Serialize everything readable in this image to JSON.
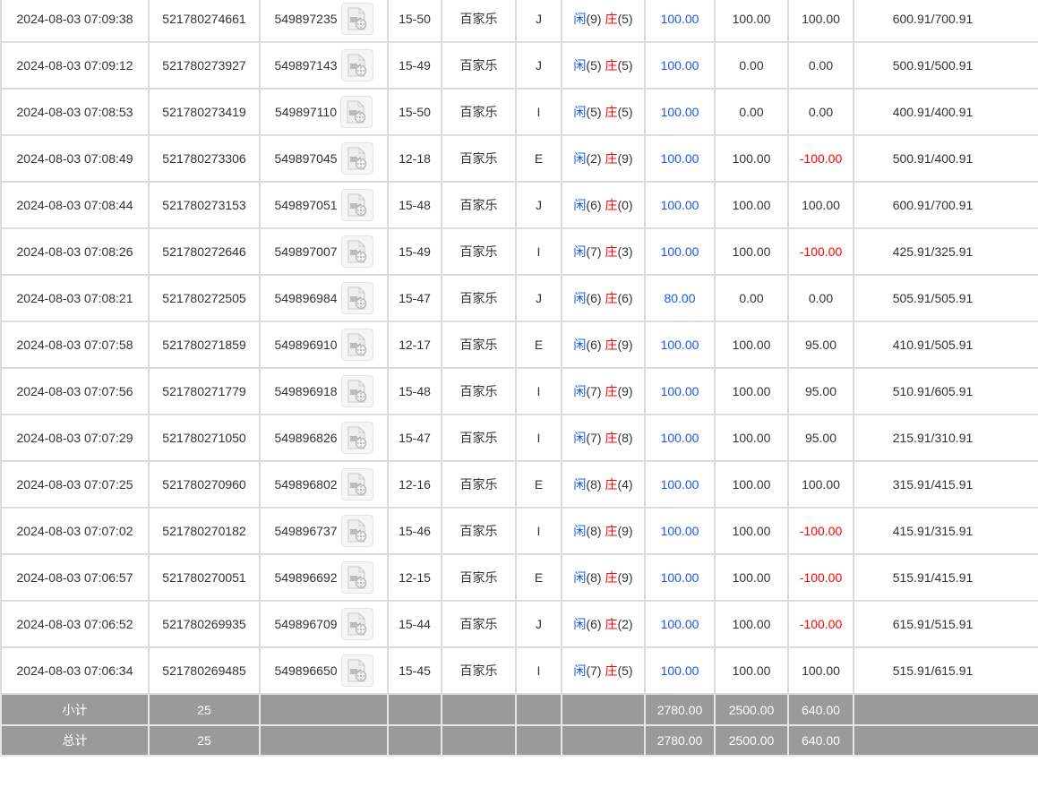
{
  "colors": {
    "link_blue": "#1e56f0",
    "loss_red": "#ff0000",
    "summary_bg": "#9a9a9a",
    "border": "#dcdcdc"
  },
  "rows": [
    {
      "time": "2024-08-03 07:09:38",
      "bet_id": "521780274661",
      "round": "549897235",
      "table": "15-50",
      "game": "百家乐",
      "code": "J",
      "player_label": "闲",
      "player": "(9)",
      "banker_label": "庄",
      "banker": "(5)",
      "bet": "100.00",
      "valid": "100.00",
      "winloss": "100.00",
      "balance": "600.91/700.91",
      "loss": false
    },
    {
      "time": "2024-08-03 07:09:12",
      "bet_id": "521780273927",
      "round": "549897143",
      "table": "15-49",
      "game": "百家乐",
      "code": "J",
      "player_label": "闲",
      "player": "(5)",
      "banker_label": "庄",
      "banker": "(5)",
      "bet": "100.00",
      "valid": "0.00",
      "winloss": "0.00",
      "balance": "500.91/500.91",
      "loss": false
    },
    {
      "time": "2024-08-03 07:08:53",
      "bet_id": "521780273419",
      "round": "549897110",
      "table": "15-50",
      "game": "百家乐",
      "code": "I",
      "player_label": "闲",
      "player": "(5)",
      "banker_label": "庄",
      "banker": "(5)",
      "bet": "100.00",
      "valid": "0.00",
      "winloss": "0.00",
      "balance": "400.91/400.91",
      "loss": false
    },
    {
      "time": "2024-08-03 07:08:49",
      "bet_id": "521780273306",
      "round": "549897045",
      "table": "12-18",
      "game": "百家乐",
      "code": "E",
      "player_label": "闲",
      "player": "(2)",
      "banker_label": "庄",
      "banker": "(9)",
      "bet": "100.00",
      "valid": "100.00",
      "winloss": "-100.00",
      "balance": "500.91/400.91",
      "loss": true
    },
    {
      "time": "2024-08-03 07:08:44",
      "bet_id": "521780273153",
      "round": "549897051",
      "table": "15-48",
      "game": "百家乐",
      "code": "J",
      "player_label": "闲",
      "player": "(6)",
      "banker_label": "庄",
      "banker": "(0)",
      "bet": "100.00",
      "valid": "100.00",
      "winloss": "100.00",
      "balance": "600.91/700.91",
      "loss": false
    },
    {
      "time": "2024-08-03 07:08:26",
      "bet_id": "521780272646",
      "round": "549897007",
      "table": "15-49",
      "game": "百家乐",
      "code": "I",
      "player_label": "闲",
      "player": "(7)",
      "banker_label": "庄",
      "banker": "(3)",
      "bet": "100.00",
      "valid": "100.00",
      "winloss": "-100.00",
      "balance": "425.91/325.91",
      "loss": true
    },
    {
      "time": "2024-08-03 07:08:21",
      "bet_id": "521780272505",
      "round": "549896984",
      "table": "15-47",
      "game": "百家乐",
      "code": "J",
      "player_label": "闲",
      "player": "(6)",
      "banker_label": "庄",
      "banker": "(6)",
      "bet": "80.00",
      "valid": "0.00",
      "winloss": "0.00",
      "balance": "505.91/505.91",
      "loss": false
    },
    {
      "time": "2024-08-03 07:07:58",
      "bet_id": "521780271859",
      "round": "549896910",
      "table": "12-17",
      "game": "百家乐",
      "code": "E",
      "player_label": "闲",
      "player": "(6)",
      "banker_label": "庄",
      "banker": "(9)",
      "bet": "100.00",
      "valid": "100.00",
      "winloss": "95.00",
      "balance": "410.91/505.91",
      "loss": false
    },
    {
      "time": "2024-08-03 07:07:56",
      "bet_id": "521780271779",
      "round": "549896918",
      "table": "15-48",
      "game": "百家乐",
      "code": "I",
      "player_label": "闲",
      "player": "(7)",
      "banker_label": "庄",
      "banker": "(9)",
      "bet": "100.00",
      "valid": "100.00",
      "winloss": "95.00",
      "balance": "510.91/605.91",
      "loss": false
    },
    {
      "time": "2024-08-03 07:07:29",
      "bet_id": "521780271050",
      "round": "549896826",
      "table": "15-47",
      "game": "百家乐",
      "code": "I",
      "player_label": "闲",
      "player": "(7)",
      "banker_label": "庄",
      "banker": "(8)",
      "bet": "100.00",
      "valid": "100.00",
      "winloss": "95.00",
      "balance": "215.91/310.91",
      "loss": false
    },
    {
      "time": "2024-08-03 07:07:25",
      "bet_id": "521780270960",
      "round": "549896802",
      "table": "12-16",
      "game": "百家乐",
      "code": "E",
      "player_label": "闲",
      "player": "(8)",
      "banker_label": "庄",
      "banker": "(4)",
      "bet": "100.00",
      "valid": "100.00",
      "winloss": "100.00",
      "balance": "315.91/415.91",
      "loss": false
    },
    {
      "time": "2024-08-03 07:07:02",
      "bet_id": "521780270182",
      "round": "549896737",
      "table": "15-46",
      "game": "百家乐",
      "code": "I",
      "player_label": "闲",
      "player": "(8)",
      "banker_label": "庄",
      "banker": "(9)",
      "bet": "100.00",
      "valid": "100.00",
      "winloss": "-100.00",
      "balance": "415.91/315.91",
      "loss": true
    },
    {
      "time": "2024-08-03 07:06:57",
      "bet_id": "521780270051",
      "round": "549896692",
      "table": "12-15",
      "game": "百家乐",
      "code": "E",
      "player_label": "闲",
      "player": "(8)",
      "banker_label": "庄",
      "banker": "(9)",
      "bet": "100.00",
      "valid": "100.00",
      "winloss": "-100.00",
      "balance": "515.91/415.91",
      "loss": true
    },
    {
      "time": "2024-08-03 07:06:52",
      "bet_id": "521780269935",
      "round": "549896709",
      "table": "15-44",
      "game": "百家乐",
      "code": "J",
      "player_label": "闲",
      "player": "(6)",
      "banker_label": "庄",
      "banker": "(2)",
      "bet": "100.00",
      "valid": "100.00",
      "winloss": "-100.00",
      "balance": "615.91/515.91",
      "loss": true
    },
    {
      "time": "2024-08-03 07:06:34",
      "bet_id": "521780269485",
      "round": "549896650",
      "table": "15-45",
      "game": "百家乐",
      "code": "I",
      "player_label": "闲",
      "player": "(7)",
      "banker_label": "庄",
      "banker": "(5)",
      "bet": "100.00",
      "valid": "100.00",
      "winloss": "100.00",
      "balance": "515.91/615.91",
      "loss": false
    }
  ],
  "subtotal": {
    "label": "小计",
    "count": "25",
    "bet": "2780.00",
    "valid": "2500.00",
    "winloss": "640.00"
  },
  "total": {
    "label": "总计",
    "count": "25",
    "bet": "2780.00",
    "valid": "2500.00",
    "winloss": "640.00"
  }
}
